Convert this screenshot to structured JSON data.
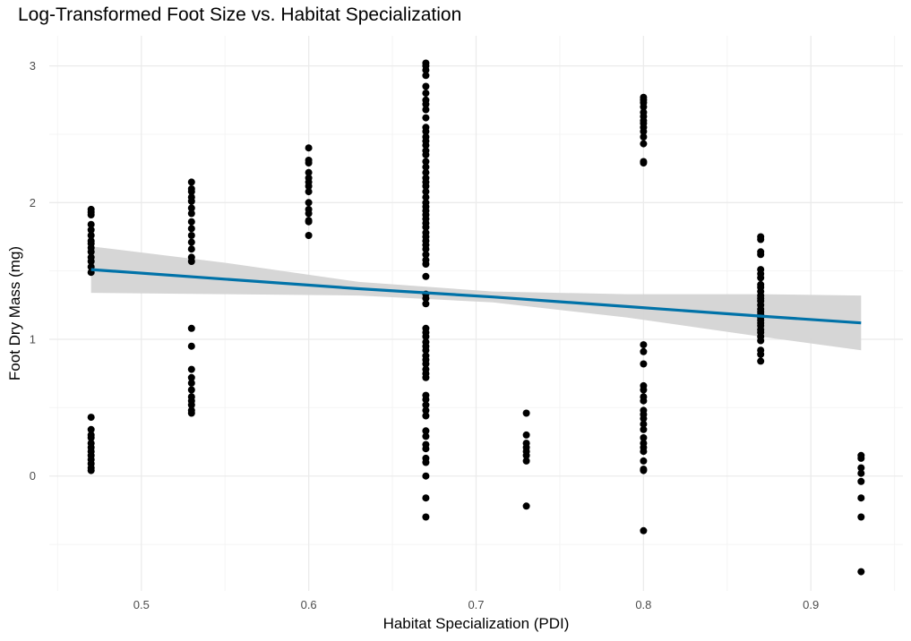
{
  "chart_data": {
    "type": "scatter",
    "title": "Log-Transformed Foot Size vs. Habitat Specialization",
    "xlabel": "Habitat Specialization (PDI)",
    "ylabel": "Foot Dry Mass (mg)",
    "xlim": [
      0.445,
      0.955
    ],
    "ylim": [
      -0.84,
      3.22
    ],
    "x_ticks": [
      0.5,
      0.6,
      0.7,
      0.8,
      0.9
    ],
    "y_ticks": [
      0,
      1,
      2,
      3
    ],
    "grid": true,
    "legend": "none",
    "colors": {
      "points": "#000000",
      "fit_line": "#0072a8",
      "confidence_band": "#d4d4d4",
      "grid_major": "#ebebeb",
      "grid_minor": "#f4f4f4"
    },
    "trend": {
      "x": [
        0.47,
        0.55,
        0.63,
        0.71,
        0.79,
        0.87,
        0.93
      ],
      "fit": [
        1.51,
        1.44,
        1.37,
        1.31,
        1.24,
        1.17,
        1.12
      ],
      "lower": [
        1.34,
        1.33,
        1.32,
        1.27,
        1.16,
        1.02,
        0.92
      ],
      "upper": [
        1.68,
        1.56,
        1.42,
        1.35,
        1.33,
        1.33,
        1.32
      ]
    },
    "series": [
      {
        "x": 0.47,
        "y": [
          1.95,
          1.93,
          1.91,
          1.84,
          1.8,
          1.76,
          1.72,
          1.7,
          1.67,
          1.64,
          1.6,
          1.57,
          1.53,
          1.49,
          0.43,
          0.34,
          0.3,
          0.28,
          0.24,
          0.21,
          0.18,
          0.15,
          0.12,
          0.09,
          0.06,
          0.04
        ]
      },
      {
        "x": 0.53,
        "y": [
          2.15,
          2.1,
          2.08,
          2.04,
          2.01,
          1.96,
          1.92,
          1.86,
          1.81,
          1.76,
          1.71,
          1.66,
          1.6,
          1.57,
          1.08,
          0.95,
          0.78,
          0.72,
          0.68,
          0.63,
          0.58,
          0.55,
          0.52,
          0.48,
          0.46
        ]
      },
      {
        "x": 0.6,
        "y": [
          2.4,
          2.31,
          2.29,
          2.22,
          2.18,
          2.15,
          2.12,
          2.08,
          2.0,
          1.95,
          1.92,
          1.87,
          1.86,
          1.76
        ]
      },
      {
        "x": 0.67,
        "y": [
          3.02,
          3.0,
          2.97,
          2.93,
          2.85,
          2.8,
          2.75,
          2.72,
          2.68,
          2.62,
          2.55,
          2.52,
          2.48,
          2.45,
          2.42,
          2.38,
          2.35,
          2.3,
          2.26,
          2.22,
          2.18,
          2.15,
          2.12,
          2.08,
          2.04,
          2.0,
          1.97,
          1.94,
          1.91,
          1.88,
          1.85,
          1.82,
          1.78,
          1.75,
          1.72,
          1.69,
          1.66,
          1.62,
          1.58,
          1.55,
          1.46,
          1.33,
          1.3,
          1.26,
          1.08,
          1.05,
          1.02,
          0.98,
          0.95,
          0.92,
          0.88,
          0.85,
          0.82,
          0.78,
          0.75,
          0.72,
          0.59,
          0.56,
          0.52,
          0.48,
          0.44,
          0.33,
          0.29,
          0.23,
          0.2,
          0.13,
          0.1,
          0.0,
          -0.16,
          -0.3
        ]
      },
      {
        "x": 0.73,
        "y": [
          0.46,
          0.3,
          0.24,
          0.21,
          0.18,
          0.15,
          0.11,
          -0.22
        ]
      },
      {
        "x": 0.8,
        "y": [
          2.77,
          2.75,
          2.73,
          2.7,
          2.66,
          2.63,
          2.6,
          2.58,
          2.55,
          2.52,
          2.48,
          2.43,
          2.3,
          2.29,
          0.96,
          0.91,
          0.82,
          0.66,
          0.63,
          0.58,
          0.55,
          0.48,
          0.45,
          0.42,
          0.38,
          0.34,
          0.28,
          0.24,
          0.21,
          0.18,
          0.11,
          0.05,
          0.04,
          -0.4
        ]
      },
      {
        "x": 0.87,
        "y": [
          1.75,
          1.73,
          1.64,
          1.62,
          1.51,
          1.48,
          1.45,
          1.4,
          1.38,
          1.35,
          1.32,
          1.3,
          1.28,
          1.25,
          1.22,
          1.2,
          1.18,
          1.16,
          1.14,
          1.12,
          1.1,
          1.07,
          1.05,
          1.02,
          0.99,
          0.92,
          0.89,
          0.84
        ]
      },
      {
        "x": 0.93,
        "y": [
          0.15,
          0.13,
          0.06,
          0.02,
          -0.04,
          -0.16,
          -0.3,
          -0.7
        ]
      }
    ]
  }
}
